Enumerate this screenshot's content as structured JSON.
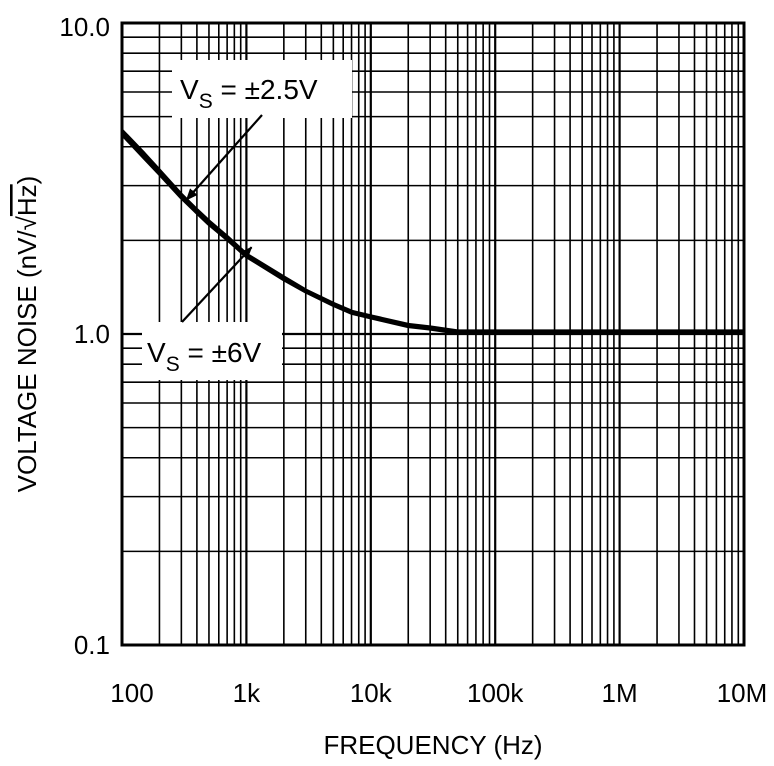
{
  "chart_data": {
    "type": "line",
    "title": "",
    "xlabel": "FREQUENCY (Hz)",
    "ylabel_prefix": "VOLTAGE NOISE (nV/",
    "ylabel_sqrt": "Hz",
    "ylabel_suffix": ")",
    "xscale": "log",
    "yscale": "log",
    "xlim": [
      100,
      10000000
    ],
    "ylim": [
      0.1,
      10
    ],
    "grid": true,
    "x_tick_values": [
      100,
      1000,
      10000,
      100000,
      1000000,
      10000000
    ],
    "x_tick_labels": [
      "100",
      "1k",
      "10k",
      "100k",
      "1M",
      "10M"
    ],
    "y_tick_values": [
      0.1,
      1,
      10
    ],
    "y_tick_labels": [
      "0.1",
      "1.0",
      "10.0"
    ],
    "series": [
      {
        "name": "VS = ±2.5V",
        "x": [
          100,
          150,
          200,
          300,
          400,
          500,
          700,
          1000,
          2000,
          3000,
          5000,
          7000,
          10000,
          20000,
          30000,
          50000,
          100000,
          1000000,
          10000000
        ],
        "y": [
          4.5,
          3.8,
          3.35,
          2.8,
          2.5,
          2.3,
          2.05,
          1.8,
          1.52,
          1.38,
          1.25,
          1.18,
          1.14,
          1.07,
          1.05,
          1.02,
          1.02,
          1.02,
          1.02
        ]
      },
      {
        "name": "VS = ±6V",
        "x": [
          100,
          150,
          200,
          300,
          400,
          500,
          700,
          1000,
          2000,
          3000,
          5000,
          7000,
          10000,
          20000,
          30000,
          50000,
          100000,
          1000000,
          10000000
        ],
        "y": [
          4.4,
          3.7,
          3.28,
          2.75,
          2.46,
          2.26,
          2.02,
          1.78,
          1.5,
          1.37,
          1.24,
          1.17,
          1.13,
          1.06,
          1.04,
          1.01,
          1.01,
          1.01,
          1.01
        ]
      }
    ],
    "annotations": [
      {
        "series": 0,
        "main": "V",
        "sub": "S",
        "rest": " = ±2.5V",
        "points_to_x": 330,
        "points_to_y": 2.7
      },
      {
        "series": 1,
        "main": "V",
        "sub": "S",
        "rest": " = ±6V",
        "points_to_x": 1100,
        "points_to_y": 1.9
      }
    ]
  }
}
